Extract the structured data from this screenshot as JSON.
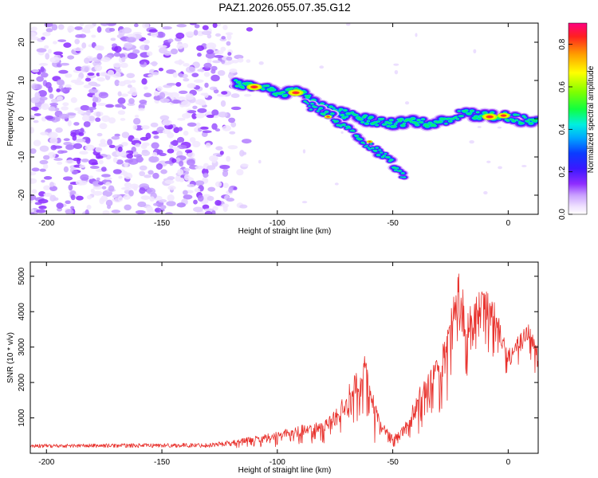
{
  "title": "PAZ1.2026.055.07.35.G12",
  "chart_data": [
    {
      "type": "heatmap",
      "xlabel": "Height of straight line (km)",
      "ylabel": "Frequency (Hz)",
      "xlim": [
        -207,
        13
      ],
      "ylim": [
        -25,
        25
      ],
      "xticks": [
        -200,
        -150,
        -100,
        -50,
        0
      ],
      "xtick_labels": [
        "-200",
        "-150",
        "-100",
        "-50",
        "0"
      ],
      "yticks": [
        -20,
        -10,
        0,
        10,
        20
      ],
      "ytick_labels": [
        "-20",
        "-10",
        "0",
        "10",
        "20"
      ],
      "colorbar": {
        "label": "Normalized spectral amplitude",
        "range": [
          0,
          0.9
        ],
        "ticks": [
          0,
          0.2,
          0.4,
          0.6,
          0.8
        ],
        "tick_labels": [
          "0.0",
          "0.2",
          "0.4",
          "0.6",
          "0.8"
        ]
      },
      "features": [
        {
          "name": "noise",
          "x_range": [
            -207,
            -112
          ],
          "y_range": [
            -25,
            25
          ],
          "amplitude": 0.15
        },
        {
          "name": "main-ridge",
          "points": [
            [
              -118,
              9
            ],
            [
              -110,
              8.5
            ],
            [
              -100,
              7
            ],
            [
              -90,
              7
            ],
            [
              -80,
              3
            ],
            [
              -70,
              1
            ],
            [
              -60,
              -0.5
            ],
            [
              -50,
              -1
            ],
            [
              -40,
              -0.5
            ],
            [
              -30,
              -1.5
            ],
            [
              -20,
              1.5
            ],
            [
              -10,
              0.5
            ],
            [
              0,
              0.5
            ],
            [
              13,
              -1
            ]
          ],
          "peak_amplitude": 0.9
        },
        {
          "name": "branch-ridge",
          "points": [
            [
              -88,
              4
            ],
            [
              -75,
              0
            ],
            [
              -65,
              -5
            ],
            [
              -55,
              -9
            ],
            [
              -45,
              -15
            ]
          ],
          "peak_amplitude": 0.45
        }
      ]
    },
    {
      "type": "line",
      "xlabel": "Height of straight line (km)",
      "ylabel": "SNR (10 * v/v)",
      "xlim": [
        -207,
        13
      ],
      "ylim": [
        0,
        5400
      ],
      "xticks": [
        -200,
        -150,
        -100,
        -50,
        0
      ],
      "xtick_labels": [
        "-200",
        "-150",
        "-100",
        "-50",
        "0"
      ],
      "yticks": [
        1000,
        2000,
        3000,
        4000,
        5000
      ],
      "ytick_labels": [
        "1000",
        "2000",
        "3000",
        "4000",
        "5000"
      ],
      "color": "#e8312c",
      "envelope": {
        "x": [
          -207,
          -130,
          -120,
          -110,
          -100,
          -90,
          -80,
          -75,
          -70,
          -65,
          -62,
          -60,
          -58,
          -55,
          -50,
          -45,
          -40,
          -35,
          -30,
          -27,
          -24,
          -21,
          -18,
          -15,
          -12,
          -8,
          -5,
          -3,
          0,
          3,
          6,
          9,
          13
        ],
        "upper": [
          260,
          290,
          380,
          480,
          620,
          800,
          900,
          1250,
          1800,
          2450,
          2800,
          2250,
          1500,
          900,
          500,
          800,
          1700,
          2200,
          2800,
          3600,
          4300,
          5400,
          3950,
          4400,
          4700,
          4600,
          4300,
          3500,
          3000,
          3200,
          3500,
          3750,
          3000
        ],
        "lower": [
          100,
          100,
          110,
          120,
          150,
          200,
          250,
          300,
          400,
          600,
          800,
          500,
          300,
          200,
          150,
          200,
          400,
          700,
          1000,
          1400,
          1800,
          2100,
          2000,
          2400,
          2700,
          2700,
          2600,
          2400,
          2000,
          2300,
          2400,
          2500,
          2000
        ]
      }
    }
  ]
}
